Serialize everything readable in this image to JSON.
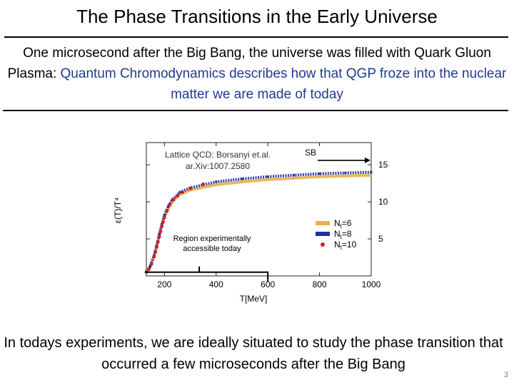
{
  "slide": {
    "title": "The Phase Transitions in the Early Universe",
    "intro_part1": "One microsecond after the Big Bang, the universe was filled with Quark Gluon Plasma: ",
    "intro_highlight": "Quantum Chromodynamics describes how that QGP froze into the nuclear matter we are made of today",
    "bottom_text": "In todays experiments, we are ideally situated to study the phase transition that occurred a few microseconds after the Big Bang",
    "page_number": "3",
    "highlight_color": "#1f3b8f"
  },
  "chart_data": {
    "type": "line",
    "xlabel": "T[MeV]",
    "ylabel": "ε(T)/T⁴",
    "xlim": [
      130,
      1000
    ],
    "ylim": [
      0,
      18
    ],
    "x_ticks": [
      200,
      400,
      600,
      800,
      1000
    ],
    "y_ticks": [
      5,
      10,
      15
    ],
    "y_axis_side": "right",
    "source_label": "Lattice QCD: Borsanyi et.al.",
    "source_ref": "ar.Xiv:1007.2580",
    "sb_label": "SB",
    "sb_value": 15.6,
    "region_label": "Region experimentally accessible today",
    "region_range": [
      130,
      600
    ],
    "series": [
      {
        "name": "Nt=6",
        "color": "#e8b04a",
        "style": "band",
        "x": [
          130,
          145,
          160,
          170,
          180,
          190,
          200,
          215,
          230,
          260,
          300,
          400,
          500,
          600,
          700,
          800,
          900,
          1000
        ],
        "y": [
          0.6,
          1.2,
          2.6,
          3.9,
          5.4,
          6.8,
          7.9,
          9.1,
          10.0,
          11.0,
          11.6,
          12.3,
          12.7,
          13.0,
          13.2,
          13.4,
          13.5,
          13.6
        ]
      },
      {
        "name": "Nt=8",
        "color": "#1c2fa0",
        "style": "band",
        "x": [
          130,
          145,
          160,
          170,
          180,
          190,
          200,
          215,
          230,
          260,
          300,
          400,
          500,
          600,
          700,
          800,
          900,
          1000
        ],
        "y": [
          0.6,
          1.3,
          2.8,
          4.1,
          5.6,
          7.0,
          8.2,
          9.4,
          10.3,
          11.3,
          11.9,
          12.7,
          13.1,
          13.4,
          13.6,
          13.8,
          13.9,
          14.0
        ]
      },
      {
        "name": "Nt=10",
        "color": "#d81c2a",
        "style": "points",
        "x": [
          130,
          140,
          150,
          160,
          165,
          170,
          175,
          180,
          185,
          190,
          195,
          200,
          210,
          220,
          235,
          250,
          270,
          300,
          350
        ],
        "y": [
          0.5,
          0.9,
          1.6,
          2.6,
          3.2,
          3.9,
          4.6,
          5.3,
          6.0,
          6.7,
          7.3,
          7.9,
          8.8,
          9.6,
          10.3,
          10.8,
          11.3,
          11.8,
          12.4
        ]
      }
    ],
    "legend": {
      "position": "bottom-right",
      "entries": [
        "6",
        "8",
        "10"
      ],
      "entry_prefix": "N",
      "entry_subscript": "t",
      "entry_eq": "="
    }
  }
}
